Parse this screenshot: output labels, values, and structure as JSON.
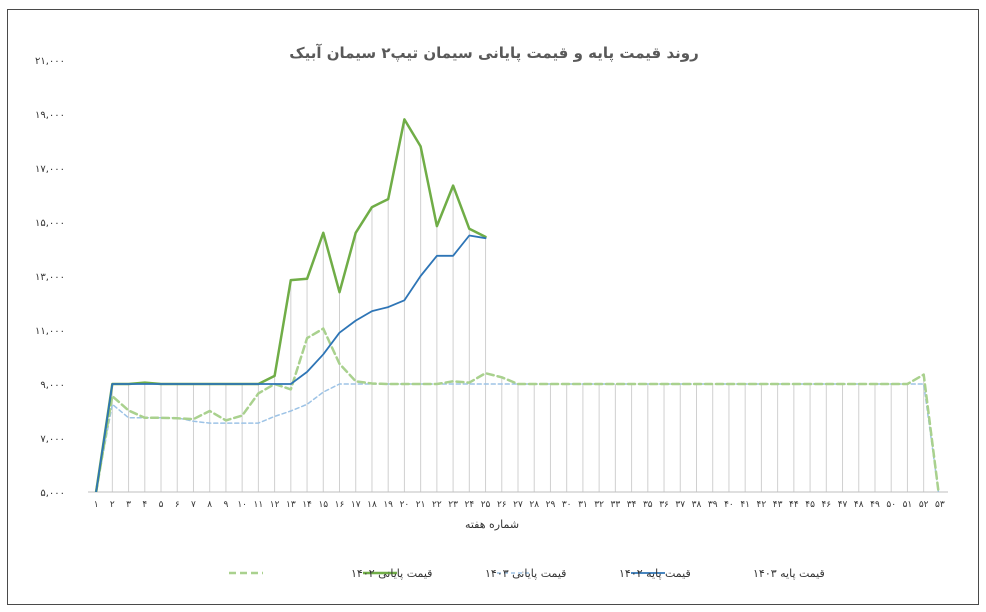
{
  "chart_data": {
    "type": "line",
    "title": "روند قیمت پایه و قیمت پایانی سیمان تیپ۲ سیمان آبیک",
    "xlabel": "شماره هفته",
    "ylabel": "",
    "ylim": [
      5000,
      21000
    ],
    "yticks": [
      5000,
      7000,
      9000,
      11000,
      13000,
      15000,
      17000,
      19000,
      21000
    ],
    "ytick_labels": [
      "۵,۰۰۰",
      "۷,۰۰۰",
      "۹,۰۰۰",
      "۱۱,۰۰۰",
      "۱۳,۰۰۰",
      "۱۵,۰۰۰",
      "۱۷,۰۰۰",
      "۱۹,۰۰۰",
      "۲۱,۰۰۰"
    ],
    "x": [
      1,
      2,
      3,
      4,
      5,
      6,
      7,
      8,
      9,
      10,
      11,
      12,
      13,
      14,
      15,
      16,
      17,
      18,
      19,
      20,
      21,
      22,
      23,
      24,
      25,
      26,
      27,
      28,
      29,
      30,
      31,
      32,
      33,
      34,
      35,
      36,
      37,
      38,
      39,
      40,
      41,
      42,
      43,
      44,
      45,
      46,
      47,
      48,
      49,
      50,
      51,
      52,
      53
    ],
    "x_labels": [
      "۱",
      "۲",
      "۳",
      "۴",
      "۵",
      "۶",
      "۷",
      "۸",
      "۹",
      "۱۰",
      "۱۱",
      "۱۲",
      "۱۳",
      "۱۴",
      "۱۵",
      "۱۶",
      "۱۷",
      "۱۸",
      "۱۹",
      "۲۰",
      "۲۱",
      "۲۲",
      "۲۳",
      "۲۴",
      "۲۵",
      "۲۶",
      "۲۷",
      "۲۸",
      "۲۹",
      "۳۰",
      "۳۱",
      "۳۲",
      "۳۳",
      "۳۴",
      "۳۵",
      "۳۶",
      "۳۷",
      "۳۸",
      "۳۹",
      "۴۰",
      "۴۱",
      "۴۲",
      "۴۳",
      "۴۴",
      "۴۵",
      "۴۶",
      "۴۷",
      "۴۸",
      "۴۹",
      "۵۰",
      "۵۱",
      "۵۲",
      "۵۳"
    ],
    "grid": "vertical",
    "legend_position": "bottom",
    "series": [
      {
        "name": "قیمت پایانی ۱۴۰۲",
        "color": "#a9d18e",
        "dash": "dashed",
        "values": [
          5000,
          8550,
          8020,
          7750,
          7750,
          7730,
          7700,
          8000,
          7650,
          7830,
          8650,
          9000,
          8800,
          10700,
          11050,
          9750,
          9100,
          9020,
          9000,
          9000,
          9000,
          9000,
          9100,
          9050,
          9400,
          9250,
          9000,
          9000,
          9000,
          9000,
          9000,
          9000,
          9000,
          9000,
          9000,
          9000,
          9000,
          9000,
          9000,
          9000,
          9000,
          9000,
          9000,
          9000,
          9000,
          9000,
          9000,
          9000,
          9000,
          9000,
          9000,
          9350,
          4600
        ]
      },
      {
        "name": "قیمت پایانی ۱۴۰۳",
        "color": "#70ad47",
        "dash": "solid",
        "values": [
          5000,
          9000,
          9000,
          9050,
          9000,
          9000,
          9000,
          9000,
          9000,
          9000,
          9000,
          9300,
          12850,
          12900,
          14600,
          12400,
          14600,
          15550,
          15850,
          18800,
          17800,
          14850,
          16350,
          14750,
          14450,
          null,
          null,
          null,
          null,
          null,
          null,
          null,
          null,
          null,
          null,
          null,
          null,
          null,
          null,
          null,
          null,
          null,
          null,
          null,
          null,
          null,
          null,
          null,
          null,
          null,
          null,
          null,
          null
        ]
      },
      {
        "name": "قیمت پایه ۱۴۰۲",
        "color": "#9dc3e6",
        "dash": "dashed",
        "values": [
          5000,
          8250,
          7750,
          7750,
          7750,
          7750,
          7620,
          7550,
          7550,
          7550,
          7550,
          7800,
          8000,
          8250,
          8700,
          9000,
          9000,
          9000,
          9000,
          9000,
          9000,
          9000,
          9000,
          9000,
          9000,
          9000,
          9000,
          9000,
          9000,
          9000,
          9000,
          9000,
          9000,
          9000,
          9000,
          9000,
          9000,
          9000,
          9000,
          9000,
          9000,
          9000,
          9000,
          9000,
          9000,
          9000,
          9000,
          9000,
          9000,
          9000,
          9000,
          9000,
          4600
        ]
      },
      {
        "name": "قیمت پایه ۱۴۰۳",
        "color": "#2e75b6",
        "dash": "solid",
        "values": [
          5000,
          9000,
          9000,
          9000,
          9000,
          9000,
          9000,
          9000,
          9000,
          9000,
          9000,
          9000,
          9000,
          9450,
          10100,
          10900,
          11350,
          11700,
          11850,
          12100,
          13000,
          13750,
          13750,
          14500,
          14400,
          null,
          null,
          null,
          null,
          null,
          null,
          null,
          null,
          null,
          null,
          null,
          null,
          null,
          null,
          null,
          null,
          null,
          null,
          null,
          null,
          null,
          null,
          null,
          null,
          null,
          null,
          null,
          null
        ]
      }
    ]
  }
}
